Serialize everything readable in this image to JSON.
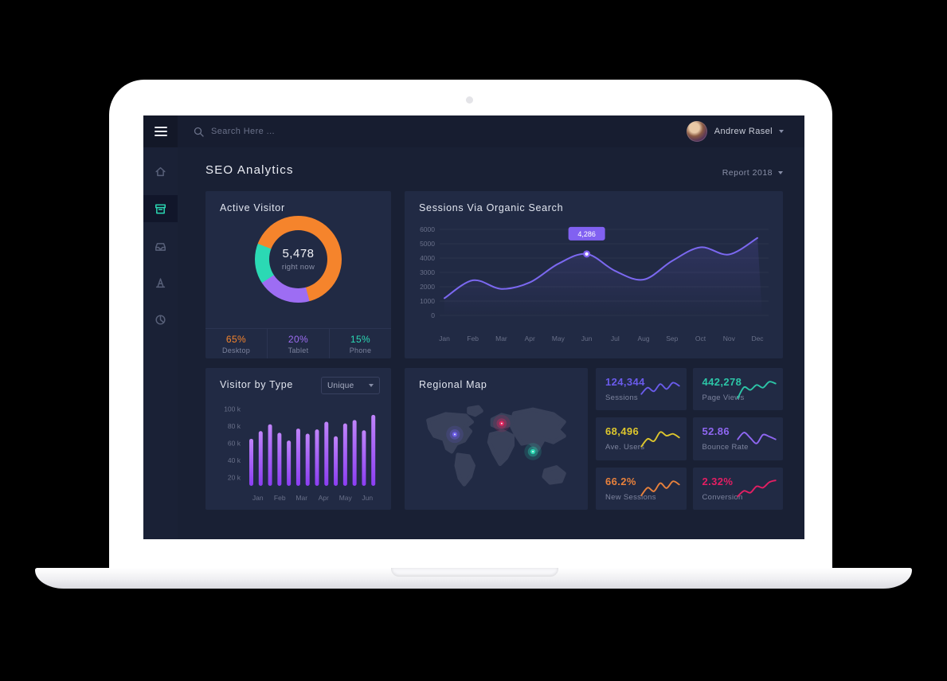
{
  "topbar": {
    "search_placeholder": "Search Here ...",
    "user_name": "Andrew Rasel"
  },
  "sidebar": {
    "items": [
      {
        "id": "home",
        "icon": "home-icon",
        "active": false
      },
      {
        "id": "dashboard",
        "icon": "archive-box-icon",
        "active": true
      },
      {
        "id": "inbox",
        "icon": "tray-icon",
        "active": false
      },
      {
        "id": "traffic",
        "icon": "cone-icon",
        "active": false
      },
      {
        "id": "reports",
        "icon": "pie-chart-icon",
        "active": false
      }
    ]
  },
  "page": {
    "title": "SEO Analytics",
    "report_dropdown": "Report 2018"
  },
  "chart_data": {
    "active_visitor": {
      "type": "pie",
      "title": "Active Visitor",
      "center_value": "5,478",
      "center_label": "right now",
      "start_angle": 291,
      "slices": [
        {
          "label": "Desktop",
          "pct": 65,
          "pct_label": "65%",
          "color": "#f5842c"
        },
        {
          "label": "Tablet",
          "pct": 20,
          "pct_label": "20%",
          "color": "#9d6df3"
        },
        {
          "label": "Phone",
          "pct": 15,
          "pct_label": "15%",
          "color": "#2bd9b4"
        }
      ]
    },
    "sessions": {
      "type": "line",
      "title": "Sessions Via Organic Search",
      "color": "#7b68f0",
      "x": [
        "Jan",
        "Feb",
        "Mar",
        "Apr",
        "May",
        "Jun",
        "Jul",
        "Aug",
        "Sep",
        "Oct",
        "Nov",
        "Dec"
      ],
      "values": [
        1200,
        2450,
        1850,
        2300,
        3600,
        4286,
        3100,
        2500,
        3800,
        4750,
        4250,
        5400
      ],
      "ylim": [
        0,
        6000
      ],
      "yticks": [
        0,
        1000,
        2000,
        3000,
        4000,
        5000,
        6000
      ],
      "grid": true,
      "tooltip": {
        "index": 5,
        "label": "4,286",
        "color": "#8161f1"
      }
    },
    "visitor_by_type": {
      "type": "bar",
      "title": "Visitor by Type",
      "filter_selected": "Unique",
      "bar_color_top": "#c084fa",
      "bar_color_bottom": "#8b3ef2",
      "month_labels": [
        "Jan",
        "Feb",
        "Mar",
        "Apr",
        "May",
        "Jun"
      ],
      "values_k": [
        65,
        74,
        82,
        72,
        63,
        77,
        71,
        76,
        85,
        68,
        83,
        87,
        75,
        93
      ],
      "yticks_k": [
        100,
        80,
        60,
        40,
        20
      ],
      "ytick_suffix": " k"
    },
    "regional_map": {
      "type": "map",
      "title": "Regional Map",
      "dots": [
        {
          "color": "#6f5fe8",
          "x": 52,
          "y": 40
        },
        {
          "color": "#e0255f",
          "x": 112,
          "y": 26
        },
        {
          "color": "#2bd9b4",
          "x": 152,
          "y": 62
        }
      ]
    },
    "stats": [
      {
        "value": "124,344",
        "label": "Sessions",
        "color": "#6a5beb",
        "spark": [
          70,
          42,
          58,
          26,
          48,
          20,
          34
        ]
      },
      {
        "value": "442,278",
        "label": "Page Views",
        "color": "#2cc5a7",
        "spark": [
          88,
          40,
          52,
          30,
          42,
          16,
          24
        ]
      },
      {
        "value": "68,496",
        "label": "Ave. Users",
        "color": "#ddc62d",
        "spark": [
          84,
          50,
          60,
          20,
          36,
          28,
          44
        ]
      },
      {
        "value": "52.86",
        "label": "Bounce Rate",
        "color": "#8f67f2",
        "spark": [
          52,
          22,
          46,
          70,
          32,
          40,
          52
        ]
      },
      {
        "value": "66.2%",
        "label": "New Sessions",
        "color": "#e8813c",
        "spark": [
          78,
          44,
          60,
          24,
          46,
          16,
          30
        ]
      },
      {
        "value": "2.32%",
        "label": "Conversion",
        "color": "#e41e63",
        "spark": [
          82,
          58,
          66,
          38,
          44,
          20,
          12
        ]
      }
    ]
  }
}
